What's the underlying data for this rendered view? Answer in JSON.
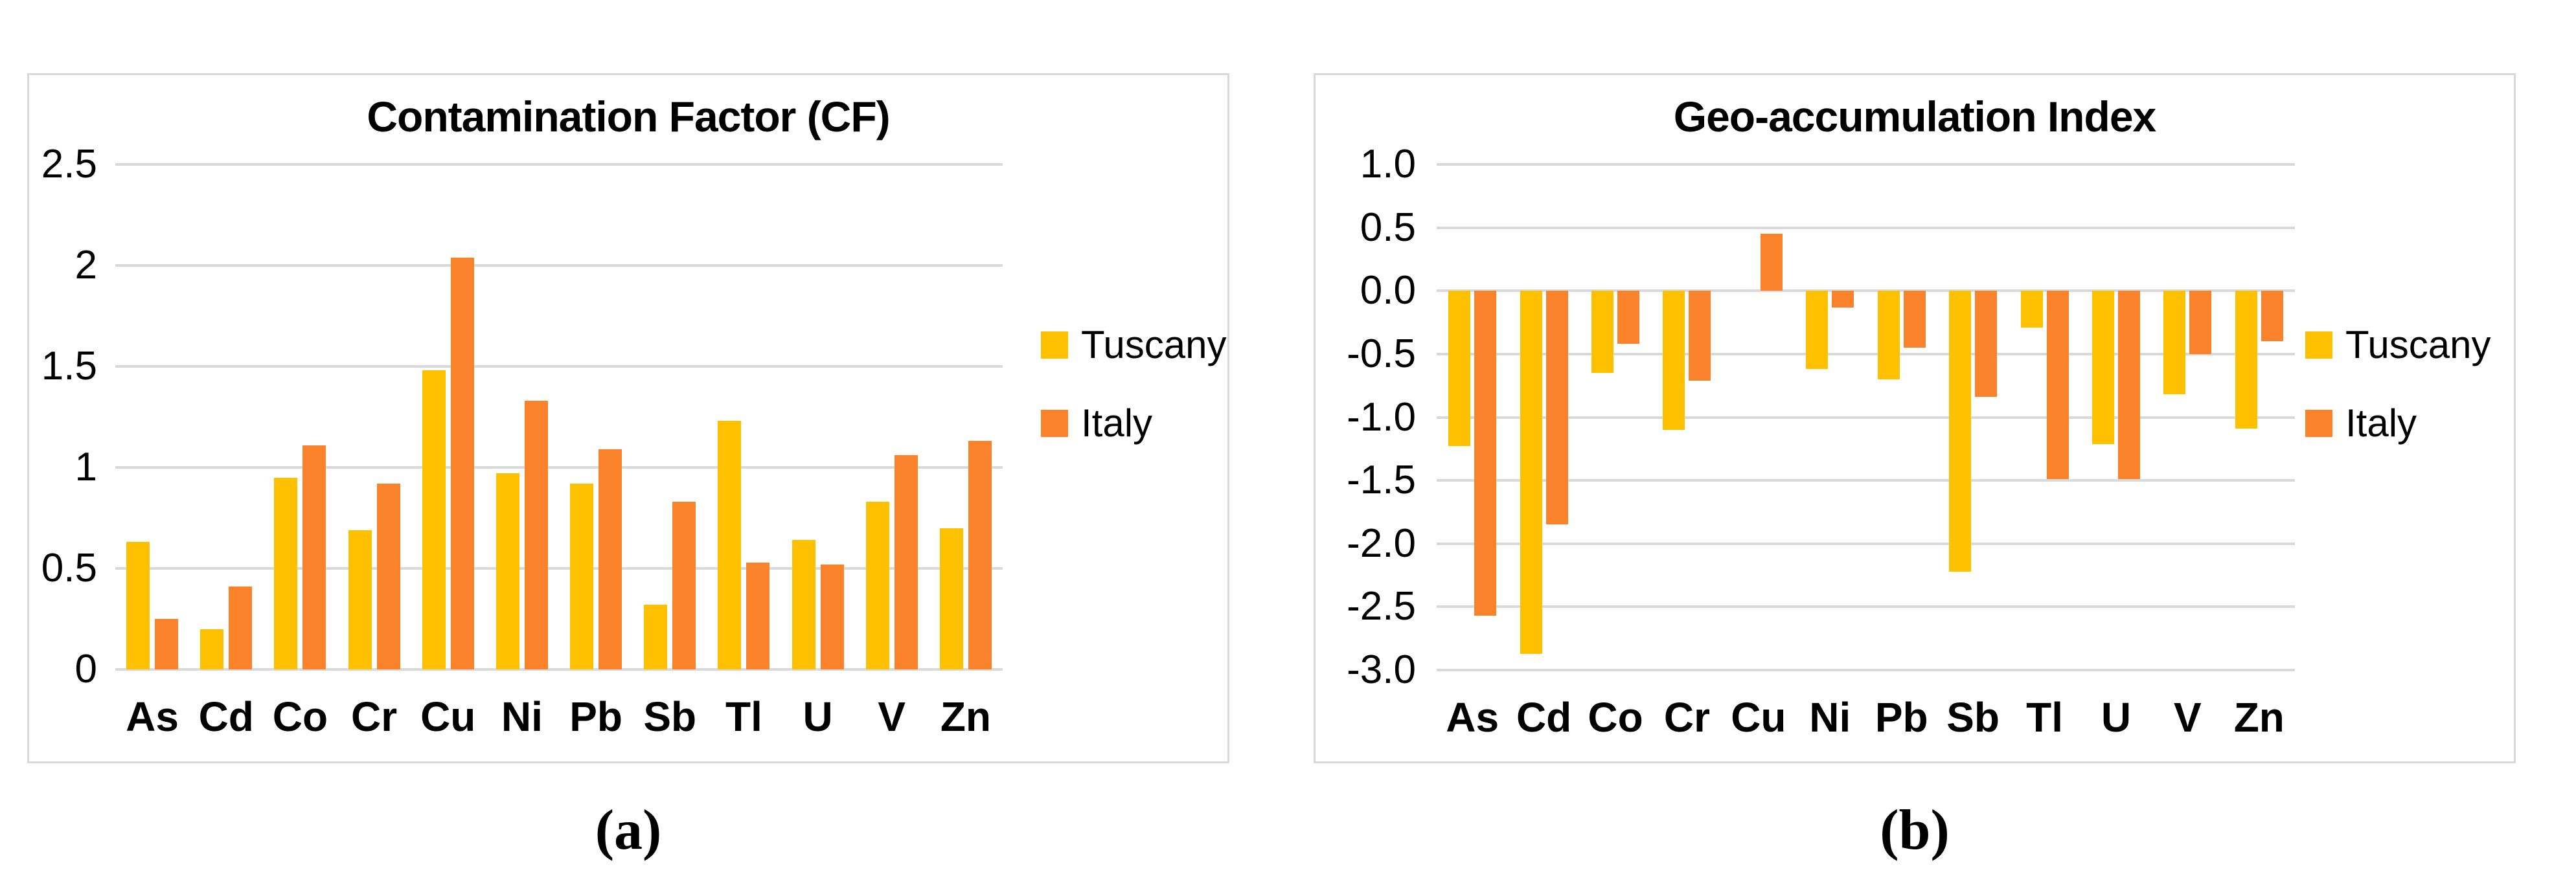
{
  "colors": {
    "tuscany": "#FFC000",
    "italy": "#F9822A",
    "gridline": "#D9D9D9",
    "panel_border": "#D9D9D9",
    "text": "#000000"
  },
  "chart_data": [
    {
      "id": "a",
      "type": "bar",
      "title": "Contamination Factor (CF)",
      "caption": "(a)",
      "xlabel": "",
      "ylabel": "",
      "grid": true,
      "legend_position": "right",
      "categories": [
        "As",
        "Cd",
        "Co",
        "Cr",
        "Cu",
        "Ni",
        "Pb",
        "Sb",
        "Tl",
        "U",
        "V",
        "Zn"
      ],
      "series": [
        {
          "name": "Tuscany",
          "color": "#FFC000",
          "values": [
            0.63,
            0.2,
            0.95,
            0.69,
            1.48,
            0.97,
            0.92,
            0.32,
            1.23,
            0.64,
            0.83,
            0.7
          ]
        },
        {
          "name": "Italy",
          "color": "#F9822A",
          "values": [
            0.25,
            0.41,
            1.11,
            0.92,
            2.04,
            1.33,
            1.09,
            0.83,
            0.53,
            0.52,
            1.06,
            1.13
          ]
        }
      ],
      "y_axis": {
        "min": 0,
        "max": 2.5,
        "tick_values": [
          2.5,
          2,
          1.5,
          1,
          0.5,
          0
        ],
        "tick_labels": [
          "2.5",
          "2",
          "1.5",
          "1",
          "0.5",
          "0"
        ]
      }
    },
    {
      "id": "b",
      "type": "bar",
      "title": "Geo-accumulation Index",
      "caption": "(b)",
      "xlabel": "",
      "ylabel": "",
      "grid": true,
      "legend_position": "right",
      "categories": [
        "As",
        "Cd",
        "Co",
        "Cr",
        "Cu",
        "Ni",
        "Pb",
        "Sb",
        "Tl",
        "U",
        "V",
        "Zn"
      ],
      "series": [
        {
          "name": "Tuscany",
          "color": "#FFC000",
          "values": [
            -1.23,
            -2.87,
            -0.65,
            -1.1,
            0,
            -0.62,
            -0.7,
            -2.22,
            -0.29,
            -1.21,
            -0.82,
            -1.09
          ]
        },
        {
          "name": "Italy",
          "color": "#F9822A",
          "values": [
            -2.57,
            -1.85,
            -0.42,
            -0.71,
            0.45,
            -0.13,
            -0.45,
            -0.84,
            -1.49,
            -1.49,
            -0.5,
            -0.4
          ]
        }
      ],
      "y_axis": {
        "min": -3.0,
        "max": 1.0,
        "tick_values": [
          1.0,
          0.5,
          0.0,
          -0.5,
          -1.0,
          -1.5,
          -2.0,
          -2.5,
          -3.0
        ],
        "tick_labels": [
          "1.0",
          "0.5",
          "0.0",
          "-0.5",
          "-1.0",
          "-1.5",
          "-2.0",
          "-2.5",
          "-3.0"
        ]
      }
    }
  ]
}
